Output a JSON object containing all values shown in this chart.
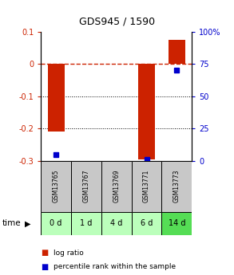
{
  "title": "GDS945 / 1590",
  "samples": [
    "GSM13765",
    "GSM13767",
    "GSM13769",
    "GSM13771",
    "GSM13773"
  ],
  "timepoints": [
    "0 d",
    "1 d",
    "4 d",
    "6 d",
    "14 d"
  ],
  "log_ratio": [
    -0.21,
    0.0,
    0.0,
    -0.295,
    0.075
  ],
  "percentile_rank": [
    5.0,
    null,
    null,
    1.0,
    70.0
  ],
  "ylim_left": [
    -0.3,
    0.1
  ],
  "ylim_right": [
    0,
    100
  ],
  "yticks_left": [
    -0.3,
    -0.2,
    -0.1,
    0.0,
    0.1
  ],
  "yticks_right": [
    0,
    25,
    50,
    75,
    100
  ],
  "ytick_labels_left": [
    "-0.3",
    "-0.2",
    "-0.1",
    "0",
    "0.1"
  ],
  "ytick_labels_right": [
    "0",
    "25",
    "50",
    "75",
    "100%"
  ],
  "bar_color": "#cc2200",
  "dot_color": "#0000cc",
  "grid_color": "#000000",
  "zero_line_color": "#cc2200",
  "bg_color": "#ffffff",
  "plot_bg": "#ffffff",
  "gsm_bg": "#c8c8c8",
  "time_bg_light": "#bbffbb",
  "time_bg_dark": "#55dd55",
  "bar_width": 0.55,
  "time_colors": [
    "#bbffbb",
    "#bbffbb",
    "#bbffbb",
    "#bbffbb",
    "#55dd55"
  ]
}
